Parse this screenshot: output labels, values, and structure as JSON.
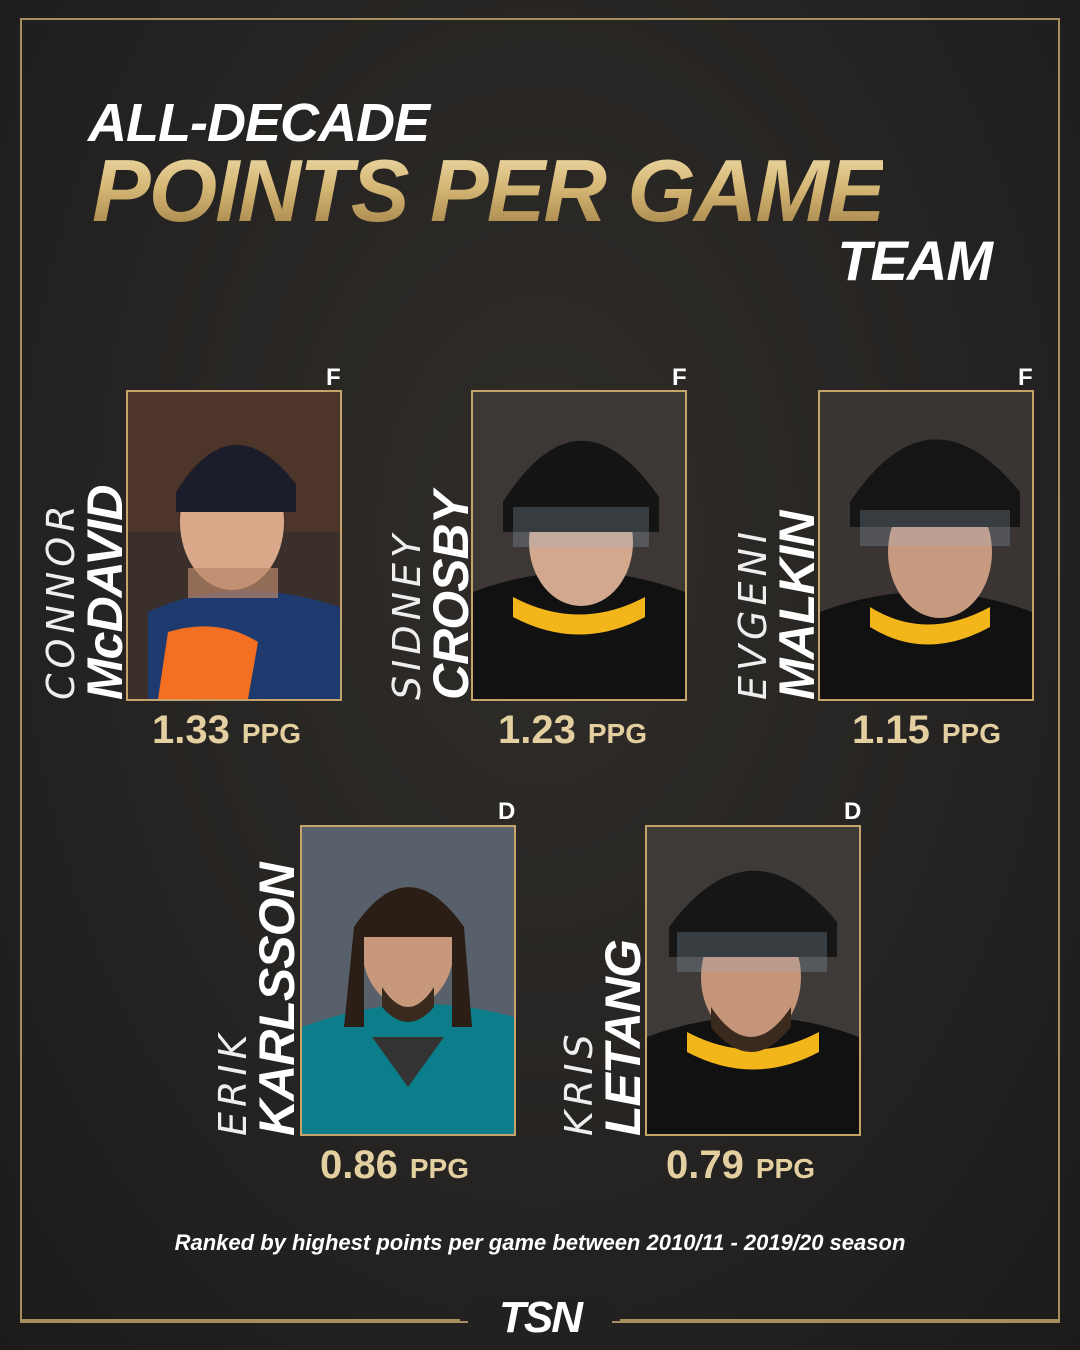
{
  "title": {
    "line1": "ALL-DECADE",
    "line2": "POINTS PER GAME",
    "line3": "TEAM"
  },
  "players": [
    {
      "first": "CONNOR",
      "last": "McDAVID",
      "position": "F",
      "value": "1.33",
      "unit": "PPG",
      "jersey": "#1f3a6e",
      "trim": "#f36f21"
    },
    {
      "first": "SIDNEY",
      "last": "CROSBY",
      "position": "F",
      "value": "1.23",
      "unit": "PPG",
      "jersey": "#111111",
      "trim": "#f2b61b"
    },
    {
      "first": "EVGENI",
      "last": "MALKIN",
      "position": "F",
      "value": "1.15",
      "unit": "PPG",
      "jersey": "#111111",
      "trim": "#f2b61b"
    },
    {
      "first": "ERIK",
      "last": "KARLSSON",
      "position": "D",
      "value": "0.86",
      "unit": "PPG",
      "jersey": "#0c7d8a",
      "trim": "#111111"
    },
    {
      "first": "KRIS",
      "last": "LETANG",
      "position": "D",
      "value": "0.79",
      "unit": "PPG",
      "jersey": "#111111",
      "trim": "#f2b61b"
    }
  ],
  "footnote": "Ranked by highest points per game between 2010/11 - 2019/20 season",
  "logo": "TSN",
  "colors": {
    "gold": "#c5a46a",
    "background": "#262422"
  }
}
